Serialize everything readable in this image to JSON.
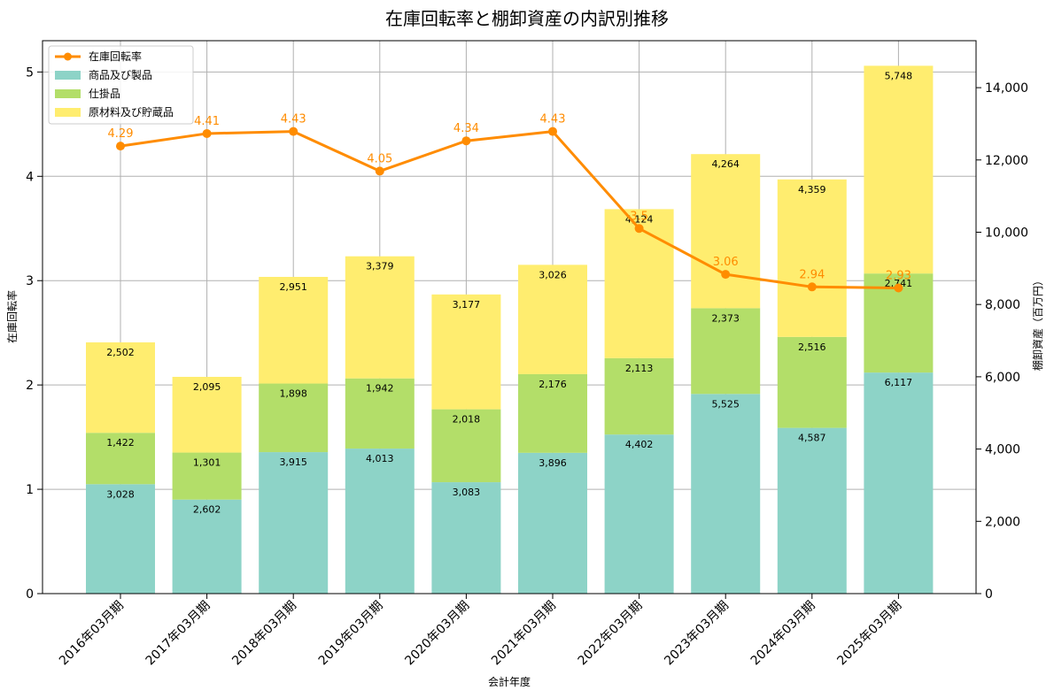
{
  "chart_data": {
    "type": "bar",
    "title": "在庫回転率と棚卸資産の内訳別推移",
    "xlabel": "会計年度",
    "ylabel_left": "在庫回転率",
    "ylabel_right": "棚卸資産（百万円）",
    "categories": [
      "2016年03月期",
      "2017年03月期",
      "2018年03月期",
      "2019年03月期",
      "2020年03月期",
      "2021年03月期",
      "2022年03月期",
      "2023年03月期",
      "2024年03月期",
      "2025年03月期"
    ],
    "stacked_series": [
      {
        "name": "商品及び製品",
        "color": "#8dd3c7",
        "values": [
          3028,
          2602,
          3915,
          4013,
          3083,
          3896,
          4402,
          5525,
          4587,
          6117
        ],
        "labels": [
          "3,028",
          "2,602",
          "3,915",
          "4,013",
          "3,083",
          "3,896",
          "4,402",
          "5,525",
          "4,587",
          "6,117"
        ]
      },
      {
        "name": "仕掛品",
        "color": "#b3de69",
        "values": [
          1422,
          1301,
          1898,
          1942,
          2018,
          2176,
          2113,
          2373,
          2516,
          2741
        ],
        "labels": [
          "1,422",
          "1,301",
          "1,898",
          "1,942",
          "2,018",
          "2,176",
          "2,113",
          "2,373",
          "2,516",
          "2,741"
        ]
      },
      {
        "name": "原材料及び貯蔵品",
        "color": "#ffed6f",
        "values": [
          2502,
          2095,
          2951,
          3379,
          3177,
          3026,
          4124,
          4264,
          4359,
          5748
        ],
        "labels": [
          "2,502",
          "2,095",
          "2,951",
          "3,379",
          "3,177",
          "3,026",
          "4,124",
          "4,264",
          "4,359",
          "5,748"
        ]
      }
    ],
    "line_series": {
      "name": "在庫回転率",
      "color": "#ff8c00",
      "values": [
        4.29,
        4.41,
        4.43,
        4.05,
        4.34,
        4.43,
        3.5,
        3.06,
        2.94,
        2.93
      ],
      "labels": [
        "4.29",
        "4.41",
        "4.43",
        "4.05",
        "4.34",
        "4.43",
        "3.5",
        "3.06",
        "2.94",
        "2.93"
      ]
    },
    "ylim_left": [
      0,
      5.3
    ],
    "yticks_left": [
      0,
      1,
      2,
      3,
      4,
      5
    ],
    "ytick_labels_left": [
      "0",
      "1",
      "2",
      "3",
      "4",
      "5"
    ],
    "ylim_right": [
      0,
      15300
    ],
    "yticks_right": [
      0,
      2000,
      4000,
      6000,
      8000,
      10000,
      12000,
      14000
    ],
    "ytick_labels_right": [
      "0",
      "2,000",
      "4,000",
      "6,000",
      "8,000",
      "10,000",
      "12,000",
      "14,000"
    ],
    "grid": true,
    "legend_position": "top-left"
  }
}
